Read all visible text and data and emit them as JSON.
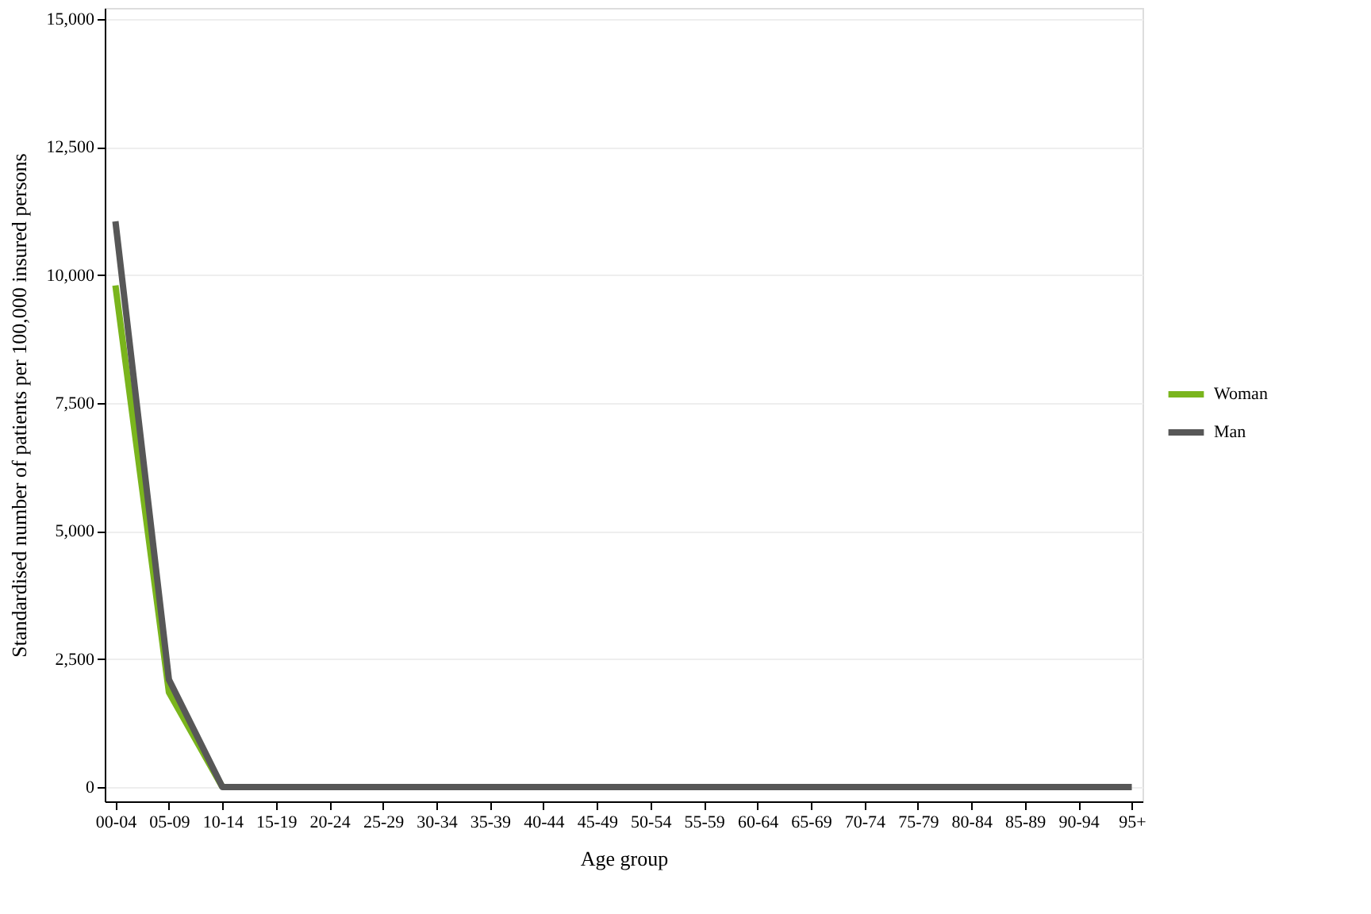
{
  "chart_data": {
    "type": "line",
    "xlabel": "Age group",
    "ylabel": "Standardised number of patients per 100,000 insured persons",
    "categories": [
      "00-04",
      "05-09",
      "10-14",
      "15-19",
      "20-24",
      "25-29",
      "30-34",
      "35-39",
      "40-44",
      "45-49",
      "50-54",
      "55-59",
      "60-64",
      "65-69",
      "70-74",
      "75-79",
      "80-84",
      "85-89",
      "90-94",
      "95+"
    ],
    "series": [
      {
        "name": "Woman",
        "color": "#7ab51d",
        "values": [
          9800,
          1850,
          0,
          null,
          null,
          null,
          null,
          null,
          null,
          null,
          null,
          null,
          null,
          null,
          null,
          null,
          null,
          null,
          null,
          null
        ]
      },
      {
        "name": "Man",
        "color": "#575757",
        "values": [
          11050,
          2100,
          0,
          0,
          0,
          0,
          0,
          0,
          0,
          0,
          0,
          0,
          0,
          0,
          0,
          0,
          0,
          0,
          0,
          0
        ]
      }
    ],
    "ylim": [
      -280,
      15220
    ],
    "yticks": [
      {
        "value": 0,
        "label": "0"
      },
      {
        "value": 2500,
        "label": "2,500"
      },
      {
        "value": 5000,
        "label": "5,000"
      },
      {
        "value": 7500,
        "label": "7,500"
      },
      {
        "value": 10000,
        "label": "10,000"
      },
      {
        "value": 12500,
        "label": "12,500"
      },
      {
        "value": 15000,
        "label": "15,000"
      }
    ],
    "grid": "y",
    "legend": "right",
    "marker": "none",
    "line_style": "solid"
  }
}
